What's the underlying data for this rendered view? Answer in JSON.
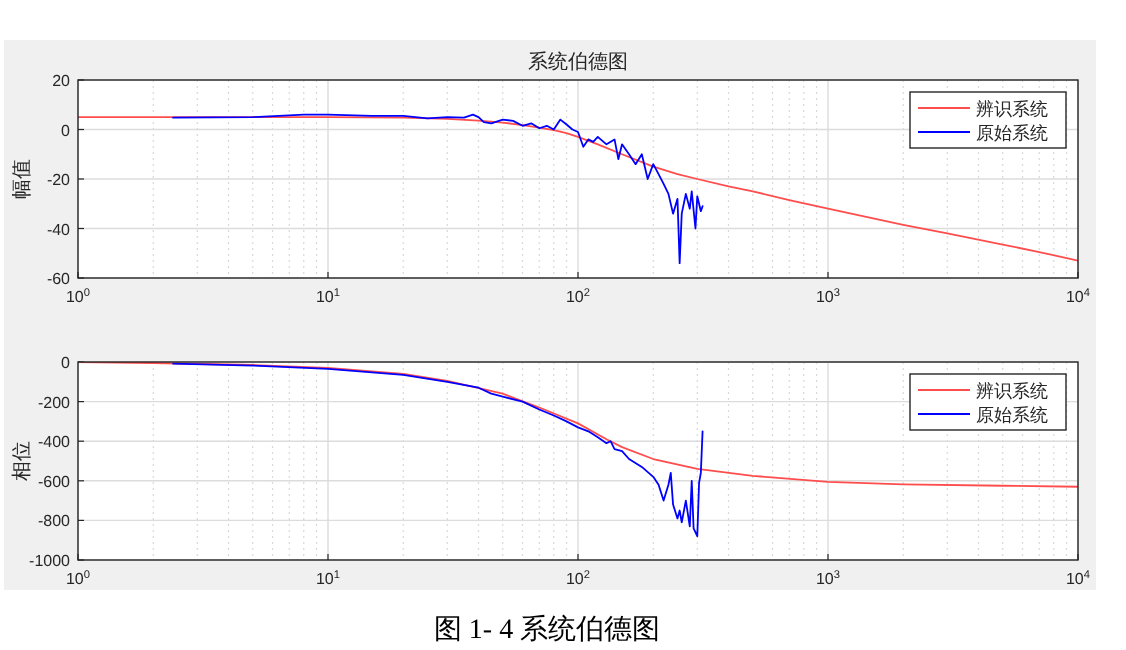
{
  "chart_data": [
    {
      "type": "line",
      "title": "系统伯德图",
      "ylabel": "幅值",
      "log": "x",
      "grid": true,
      "legend": "top right",
      "xlim": [
        1,
        10000
      ],
      "ylim": [
        -60,
        20
      ],
      "xticks": [
        {
          "value": 1,
          "label": "10$^{0}$"
        },
        {
          "value": 10,
          "label": "10$^{1}$"
        },
        {
          "value": 100,
          "label": "10$^{2}$"
        },
        {
          "value": 1000,
          "label": "10$^{3}$"
        },
        {
          "value": 10000,
          "label": "10$^{4}$"
        }
      ],
      "yticks": [
        -60,
        -40,
        -20,
        0,
        20
      ],
      "series": [
        {
          "name": "辨识系统",
          "color": "#ff4d4d",
          "x": [
            1,
            10,
            20,
            30,
            40,
            50,
            60,
            70,
            80,
            90,
            100,
            120,
            150,
            200,
            250,
            300,
            400,
            500,
            700,
            1000,
            2000,
            3000,
            5000,
            7000,
            10000
          ],
          "values": [
            5,
            5,
            4.8,
            4.3,
            3.6,
            2.8,
            1.8,
            0.8,
            -0.3,
            -1.5,
            -3,
            -6,
            -10,
            -15,
            -18,
            -20,
            -23,
            -25,
            -28.5,
            -32,
            -38.5,
            -42,
            -46.5,
            -49.5,
            -53
          ]
        },
        {
          "name": "原始系统",
          "color": "#0000ff",
          "x": [
            2.4,
            5,
            8,
            10,
            15,
            20,
            25,
            30,
            35,
            38,
            40,
            42,
            45,
            50,
            55,
            60,
            65,
            70,
            75,
            80,
            85,
            90,
            95,
            100,
            105,
            110,
            115,
            120,
            130,
            140,
            145,
            150,
            160,
            170,
            180,
            190,
            200,
            210,
            220,
            230,
            240,
            250,
            255,
            260,
            270,
            280,
            285,
            295,
            300,
            310,
            315
          ],
          "values": [
            4.8,
            5,
            6,
            6,
            5.5,
            5.5,
            4.5,
            5,
            4.8,
            6,
            5,
            3,
            2.5,
            4,
            3.5,
            1.5,
            2.5,
            0.5,
            1.5,
            0,
            4,
            2,
            0,
            -1,
            -7,
            -4,
            -5,
            -3,
            -6,
            -4,
            -12,
            -6,
            -10,
            -14,
            -10,
            -20,
            -14,
            -18,
            -22,
            -26,
            -34,
            -28,
            -54,
            -34,
            -26,
            -32,
            -25,
            -40,
            -27,
            -33,
            -31
          ]
        }
      ]
    },
    {
      "type": "line",
      "ylabel": "相位",
      "log": "x",
      "grid": true,
      "legend": "top right",
      "xlim": [
        1,
        10000
      ],
      "ylim": [
        -1000,
        0
      ],
      "xticks": [
        {
          "value": 1,
          "label": "10$^{0}$"
        },
        {
          "value": 10,
          "label": "10$^{1}$"
        },
        {
          "value": 100,
          "label": "10$^{2}$"
        },
        {
          "value": 1000,
          "label": "10$^{3}$"
        },
        {
          "value": 10000,
          "label": "10$^{4}$"
        }
      ],
      "yticks": [
        -1000,
        -800,
        -600,
        -400,
        -200,
        0
      ],
      "annotations": [
        "图 1- 4 系统伯德图"
      ],
      "series": [
        {
          "name": "辨识系统",
          "color": "#ff4d4d",
          "x": [
            1,
            2,
            5,
            10,
            20,
            30,
            50,
            70,
            100,
            130,
            150,
            200,
            300,
            500,
            1000,
            2000,
            5000,
            10000
          ],
          "values": [
            0,
            -5,
            -15,
            -30,
            -60,
            -95,
            -160,
            -230,
            -310,
            -390,
            -430,
            -490,
            -540,
            -575,
            -605,
            -618,
            -625,
            -630
          ]
        },
        {
          "name": "原始系统",
          "color": "#0000ff",
          "x": [
            2.4,
            5,
            10,
            20,
            30,
            40,
            45,
            50,
            60,
            70,
            80,
            90,
            100,
            110,
            120,
            130,
            135,
            140,
            150,
            160,
            180,
            200,
            210,
            220,
            230,
            235,
            240,
            250,
            255,
            260,
            270,
            280,
            285,
            290,
            300,
            305,
            310,
            315
          ],
          "values": [
            -8,
            -18,
            -35,
            -65,
            -100,
            -130,
            -160,
            -175,
            -200,
            -240,
            -270,
            -300,
            -330,
            -350,
            -380,
            -410,
            -400,
            -440,
            -450,
            -490,
            -530,
            -580,
            -620,
            -700,
            -620,
            -560,
            -720,
            -790,
            -750,
            -810,
            -700,
            -830,
            -600,
            -840,
            -880,
            -610,
            -560,
            -350
          ]
        }
      ]
    }
  ]
}
